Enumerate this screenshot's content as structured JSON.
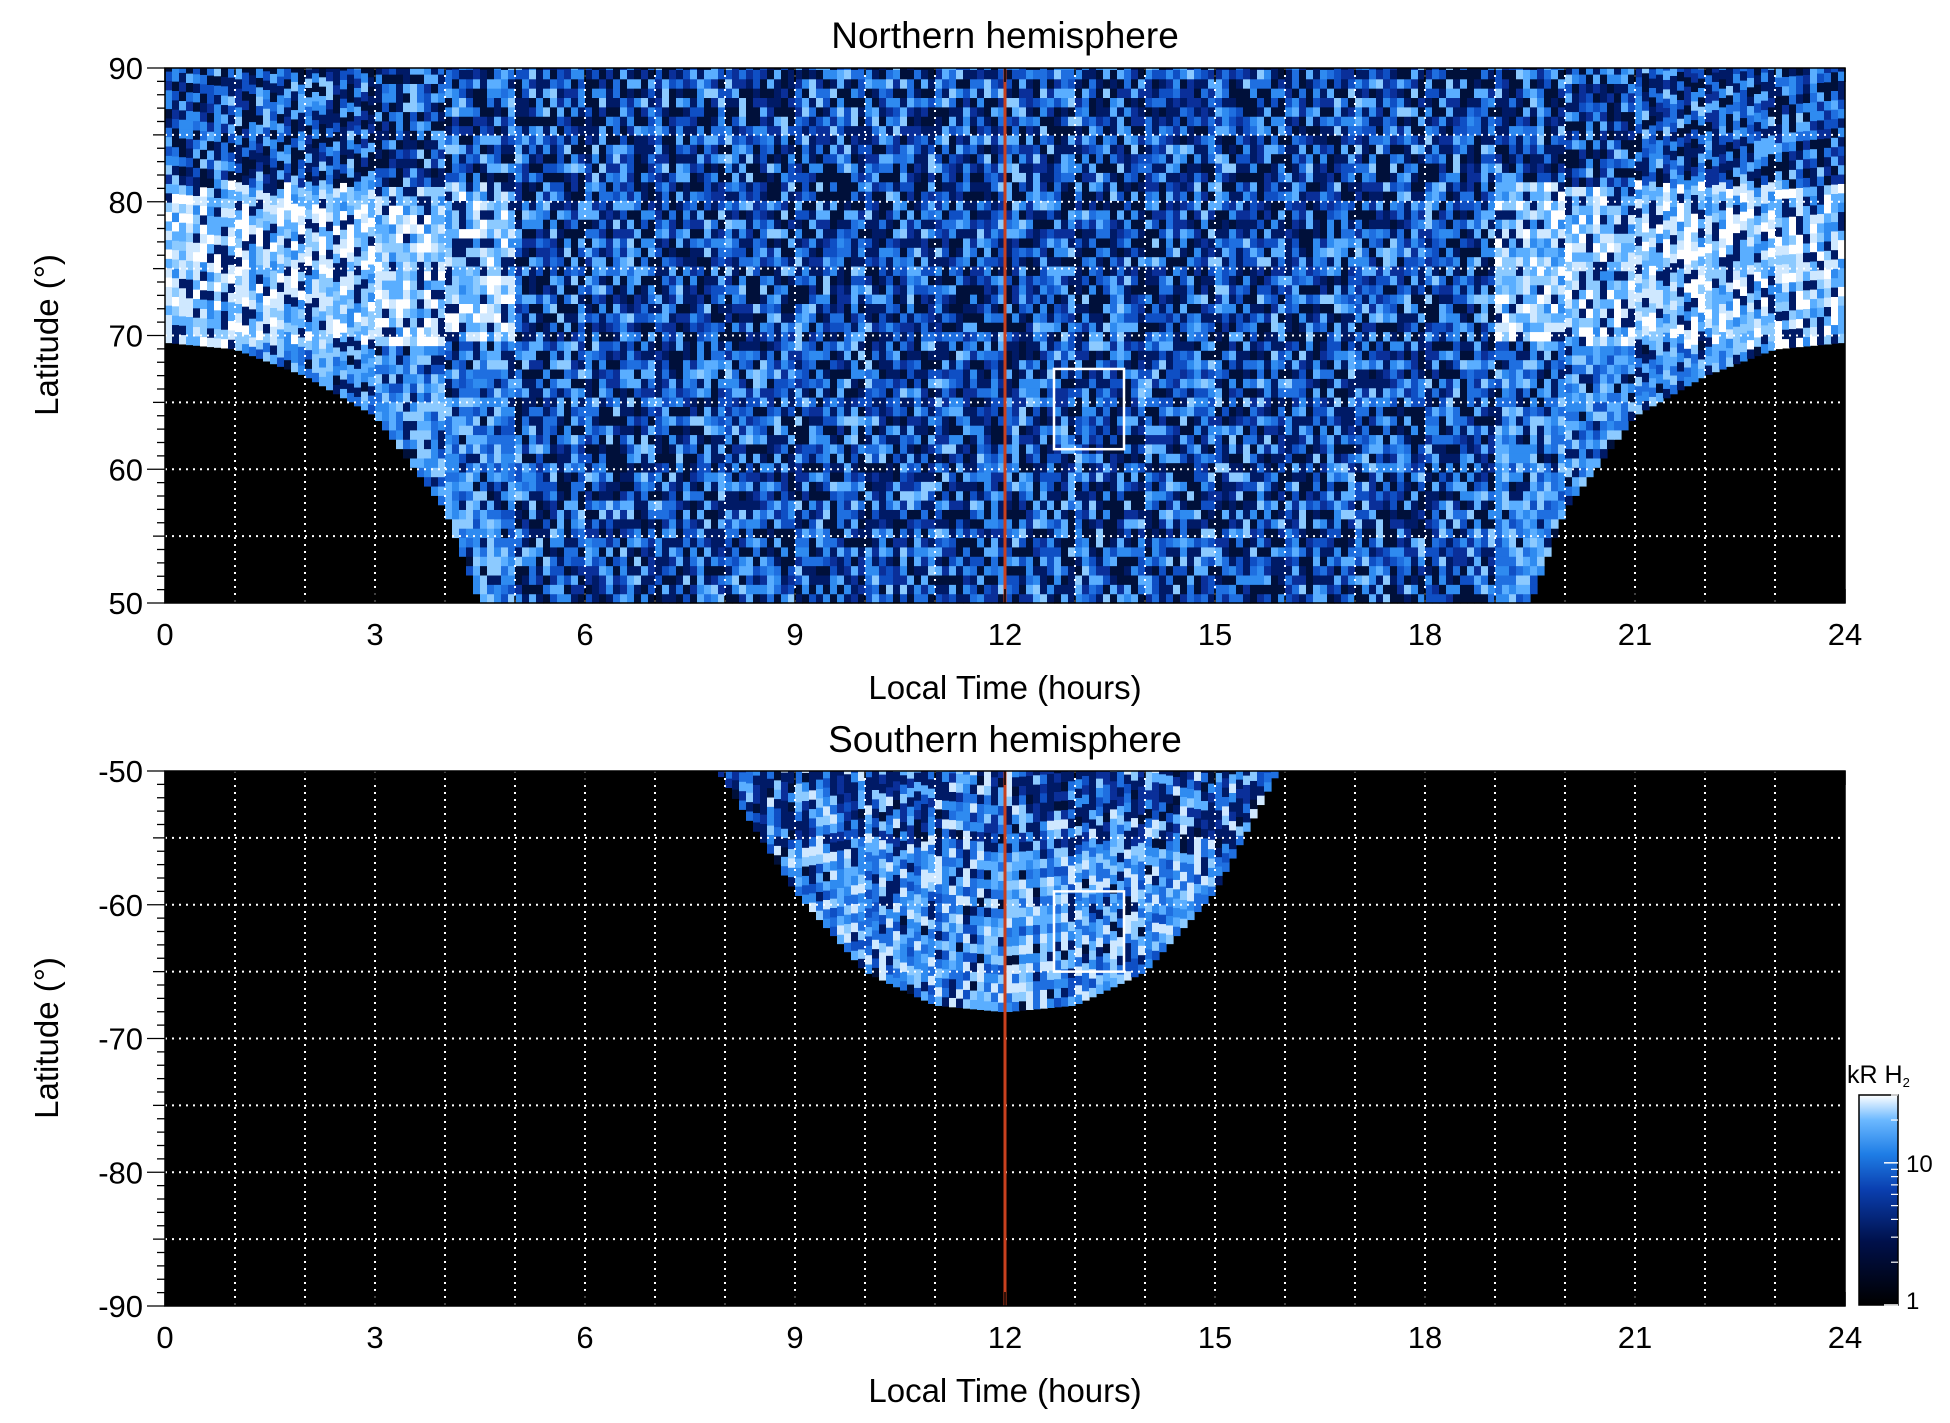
{
  "chart_data": [
    {
      "type": "heatmap",
      "title": "Northern hemisphere",
      "xlabel": "Local Time (hours)",
      "ylabel": "Latitude (°)",
      "xlim": [
        0,
        24
      ],
      "ylim": [
        50,
        90
      ],
      "xticks": [
        0,
        3,
        6,
        9,
        12,
        15,
        18,
        21,
        24
      ],
      "yticks": [
        50,
        60,
        70,
        80,
        90
      ],
      "x_gridlines": [
        1,
        2,
        3,
        4,
        5,
        6,
        7,
        8,
        9,
        10,
        11,
        12,
        13,
        14,
        15,
        16,
        17,
        18,
        19,
        20,
        21,
        22,
        23
      ],
      "y_gridlines": [
        55,
        60,
        65,
        70,
        75,
        80,
        85
      ],
      "grid": true,
      "noon_line_local_time": 12,
      "highlight_box": {
        "x": [
          12.7,
          13.7
        ],
        "y": [
          61.5,
          67.5
        ]
      },
      "coverage": {
        "min_latitude_at_local_time": [
          [
            0,
            69.5
          ],
          [
            1,
            69
          ],
          [
            2,
            67
          ],
          [
            3,
            64
          ],
          [
            4,
            57
          ],
          [
            4.5,
            50
          ],
          [
            19.5,
            50
          ],
          [
            20,
            57
          ],
          [
            21,
            64
          ],
          [
            22,
            67
          ],
          [
            23,
            69
          ],
          [
            24,
            69.5
          ]
        ]
      },
      "bright_band_latitude_range": [
        69,
        81
      ]
    },
    {
      "type": "heatmap",
      "title": "Southern hemisphere",
      "xlabel": "Local Time (hours)",
      "ylabel": "Latitude (°)",
      "xlim": [
        0,
        24
      ],
      "ylim": [
        -90,
        -50
      ],
      "xticks": [
        0,
        3,
        6,
        9,
        12,
        15,
        18,
        21,
        24
      ],
      "yticks": [
        -50,
        -60,
        -70,
        -80,
        -90
      ],
      "x_gridlines": [
        1,
        2,
        3,
        4,
        5,
        6,
        7,
        8,
        9,
        10,
        11,
        12,
        13,
        14,
        15,
        16,
        17,
        18,
        19,
        20,
        21,
        22,
        23
      ],
      "y_gridlines": [
        -55,
        -60,
        -65,
        -70,
        -75,
        -80,
        -85
      ],
      "grid": true,
      "noon_line_local_time": 12,
      "highlight_box": {
        "x": [
          12.7,
          13.7
        ],
        "y": [
          -65,
          -59
        ]
      },
      "coverage": {
        "max_latitude_at_local_time": [
          [
            7.9,
            -50
          ],
          [
            9,
            -59
          ],
          [
            10,
            -65
          ],
          [
            11,
            -67.5
          ],
          [
            12,
            -68
          ],
          [
            13,
            -67.5
          ],
          [
            14,
            -65
          ],
          [
            15,
            -59
          ],
          [
            15.9,
            -50
          ]
        ]
      }
    }
  ],
  "colorbar": {
    "label_main": "kR H",
    "label_sub": "2",
    "scale": "log",
    "range": [
      1,
      30
    ],
    "ticks": [
      "1",
      "10"
    ],
    "colors": [
      "#000000",
      "#00104a",
      "#0a3fb0",
      "#1f7ee6",
      "#6bb8ff",
      "#ffffff"
    ]
  },
  "colors": {
    "noon_line": "#c8401e",
    "grid": "#ffffff",
    "background": "#000000"
  }
}
